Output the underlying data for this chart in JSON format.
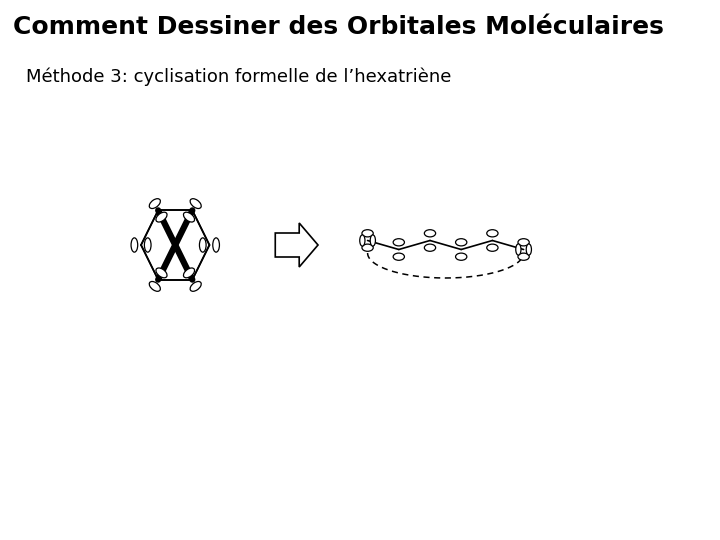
{
  "title": "Comment Dessiner des Orbitales Moléculaires",
  "subtitle": "Méthode 3: cyclisation formelle de l’hexatrièene",
  "subtitle2": "Méthode 3: cyclisation formelle de l’hexatriène",
  "bg_color": "#ffffff",
  "title_fontsize": 18,
  "subtitle_fontsize": 13,
  "line_color": "#000000"
}
